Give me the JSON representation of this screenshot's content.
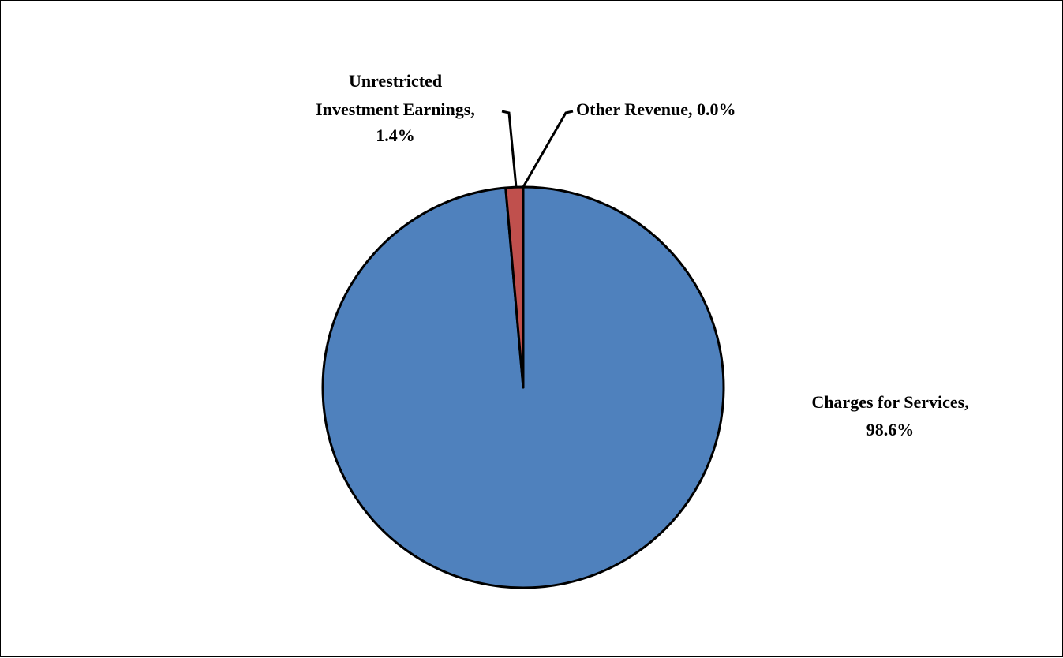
{
  "chart_data": {
    "type": "pie",
    "title": "",
    "slices": [
      {
        "name": "Charges for Services",
        "value": 98.6,
        "label": "Charges for Services,",
        "pct_label": "98.6%",
        "color": "#4F81BD"
      },
      {
        "name": "Unrestricted Investment Earnings",
        "value": 1.4,
        "label_lines": [
          "Unrestricted",
          "Investment Earnings,",
          "1.4%"
        ],
        "color": "#C0504D"
      },
      {
        "name": "Other Revenue",
        "value": 0.0,
        "label": "Other Revenue, 0.0%",
        "color": "#9BBB59"
      }
    ],
    "legend": "none",
    "units": "%"
  }
}
